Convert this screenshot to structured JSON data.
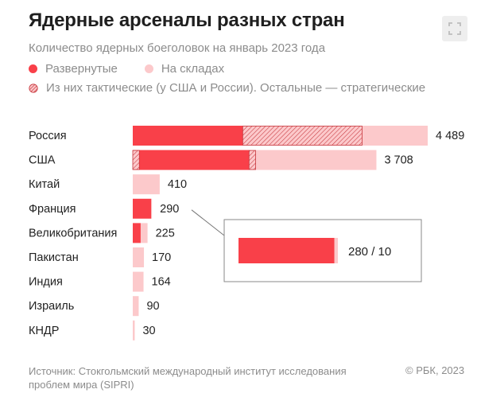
{
  "header": {
    "title": "Ядерные арсеналы разных стран",
    "subtitle": "Количество ядерных боеголовок на январь 2023 года"
  },
  "legend": {
    "deployed": "Развернутые",
    "stored": "На складах",
    "tactical": "Из них тактические (у США и России). Остальные — стратегические"
  },
  "colors": {
    "deployed": "#f94049",
    "stored": "#fcc9cb",
    "tactical_hatch": "#c7363c",
    "text": "#222222",
    "muted": "#8c8c8c"
  },
  "chart_data": {
    "type": "bar",
    "orientation": "horizontal",
    "stacked": true,
    "title": "Ядерные арсеналы разных стран",
    "subtitle": "Количество ядерных боеголовок на январь 2023 года",
    "categories": [
      "Россия",
      "США",
      "Китай",
      "Франция",
      "Великобритания",
      "Пакистан",
      "Индия",
      "Израиль",
      "КНДР"
    ],
    "total_labels": [
      "4 489",
      "3 708",
      "410",
      "290",
      "225",
      "170",
      "164",
      "90",
      "30"
    ],
    "series": [
      {
        "name": "Развернутые",
        "values": [
          1674,
          1770,
          0,
          280,
          120,
          0,
          0,
          0,
          0
        ]
      },
      {
        "name": "На складах",
        "values": [
          2815,
          1938,
          410,
          10,
          105,
          170,
          164,
          90,
          30
        ]
      }
    ],
    "tactical_ranges": [
      {
        "category": "Россия",
        "start": 1674,
        "end": 3490
      },
      {
        "category": "США",
        "start": 0,
        "end": 100
      },
      {
        "category": "США",
        "start": 1770,
        "end": 1870
      }
    ],
    "callout": {
      "category": "Франция",
      "deployed": 280,
      "stored": 10,
      "label": "280 / 10"
    },
    "xlim": [
      0,
      4489
    ],
    "xlabel": "",
    "ylabel": "",
    "grid": false
  },
  "footer": {
    "source": "Источник: Стокгольмский международный институт исследования проблем мира (SIPRI)",
    "copyright": "© РБК, 2023"
  }
}
